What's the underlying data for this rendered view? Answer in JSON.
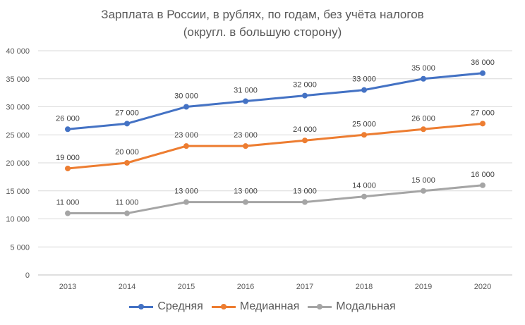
{
  "chart_data": {
    "type": "line",
    "title_line1": "Зарплата в России, в рублях, по годам, без учёта налогов",
    "title_line2": "(округл. в большую сторону)",
    "xlabel": "",
    "ylabel": "",
    "categories": [
      "2013",
      "2014",
      "2015",
      "2016",
      "2017",
      "2018",
      "2019",
      "2020"
    ],
    "ylim": [
      0,
      40000
    ],
    "ytick_labels": [
      "0",
      "5 000",
      "10 000",
      "15 000",
      "20 000",
      "25 000",
      "30 000",
      "35 000",
      "40 000"
    ],
    "grid": true,
    "legend_position": "bottom",
    "series": [
      {
        "name": "Средняя",
        "color": "#4472C4",
        "values": [
          26000,
          27000,
          30000,
          31000,
          32000,
          33000,
          35000,
          36000
        ],
        "labels": [
          "26 000",
          "27 000",
          "30 000",
          "31 000",
          "32 000",
          "33 000",
          "35 000",
          "36 000"
        ]
      },
      {
        "name": "Медианная",
        "color": "#ED7D31",
        "values": [
          19000,
          20000,
          23000,
          23000,
          24000,
          25000,
          26000,
          27000
        ],
        "labels": [
          "19 000",
          "20 000",
          "23 000",
          "23 000",
          "24 000",
          "25 000",
          "26 000",
          "27 000"
        ]
      },
      {
        "name": "Модальная",
        "color": "#A5A5A5",
        "values": [
          11000,
          11000,
          13000,
          13000,
          13000,
          14000,
          15000,
          16000
        ],
        "labels": [
          "11 000",
          "11 000",
          "13 000",
          "13 000",
          "13 000",
          "14 000",
          "15 000",
          "16 000"
        ]
      }
    ]
  }
}
